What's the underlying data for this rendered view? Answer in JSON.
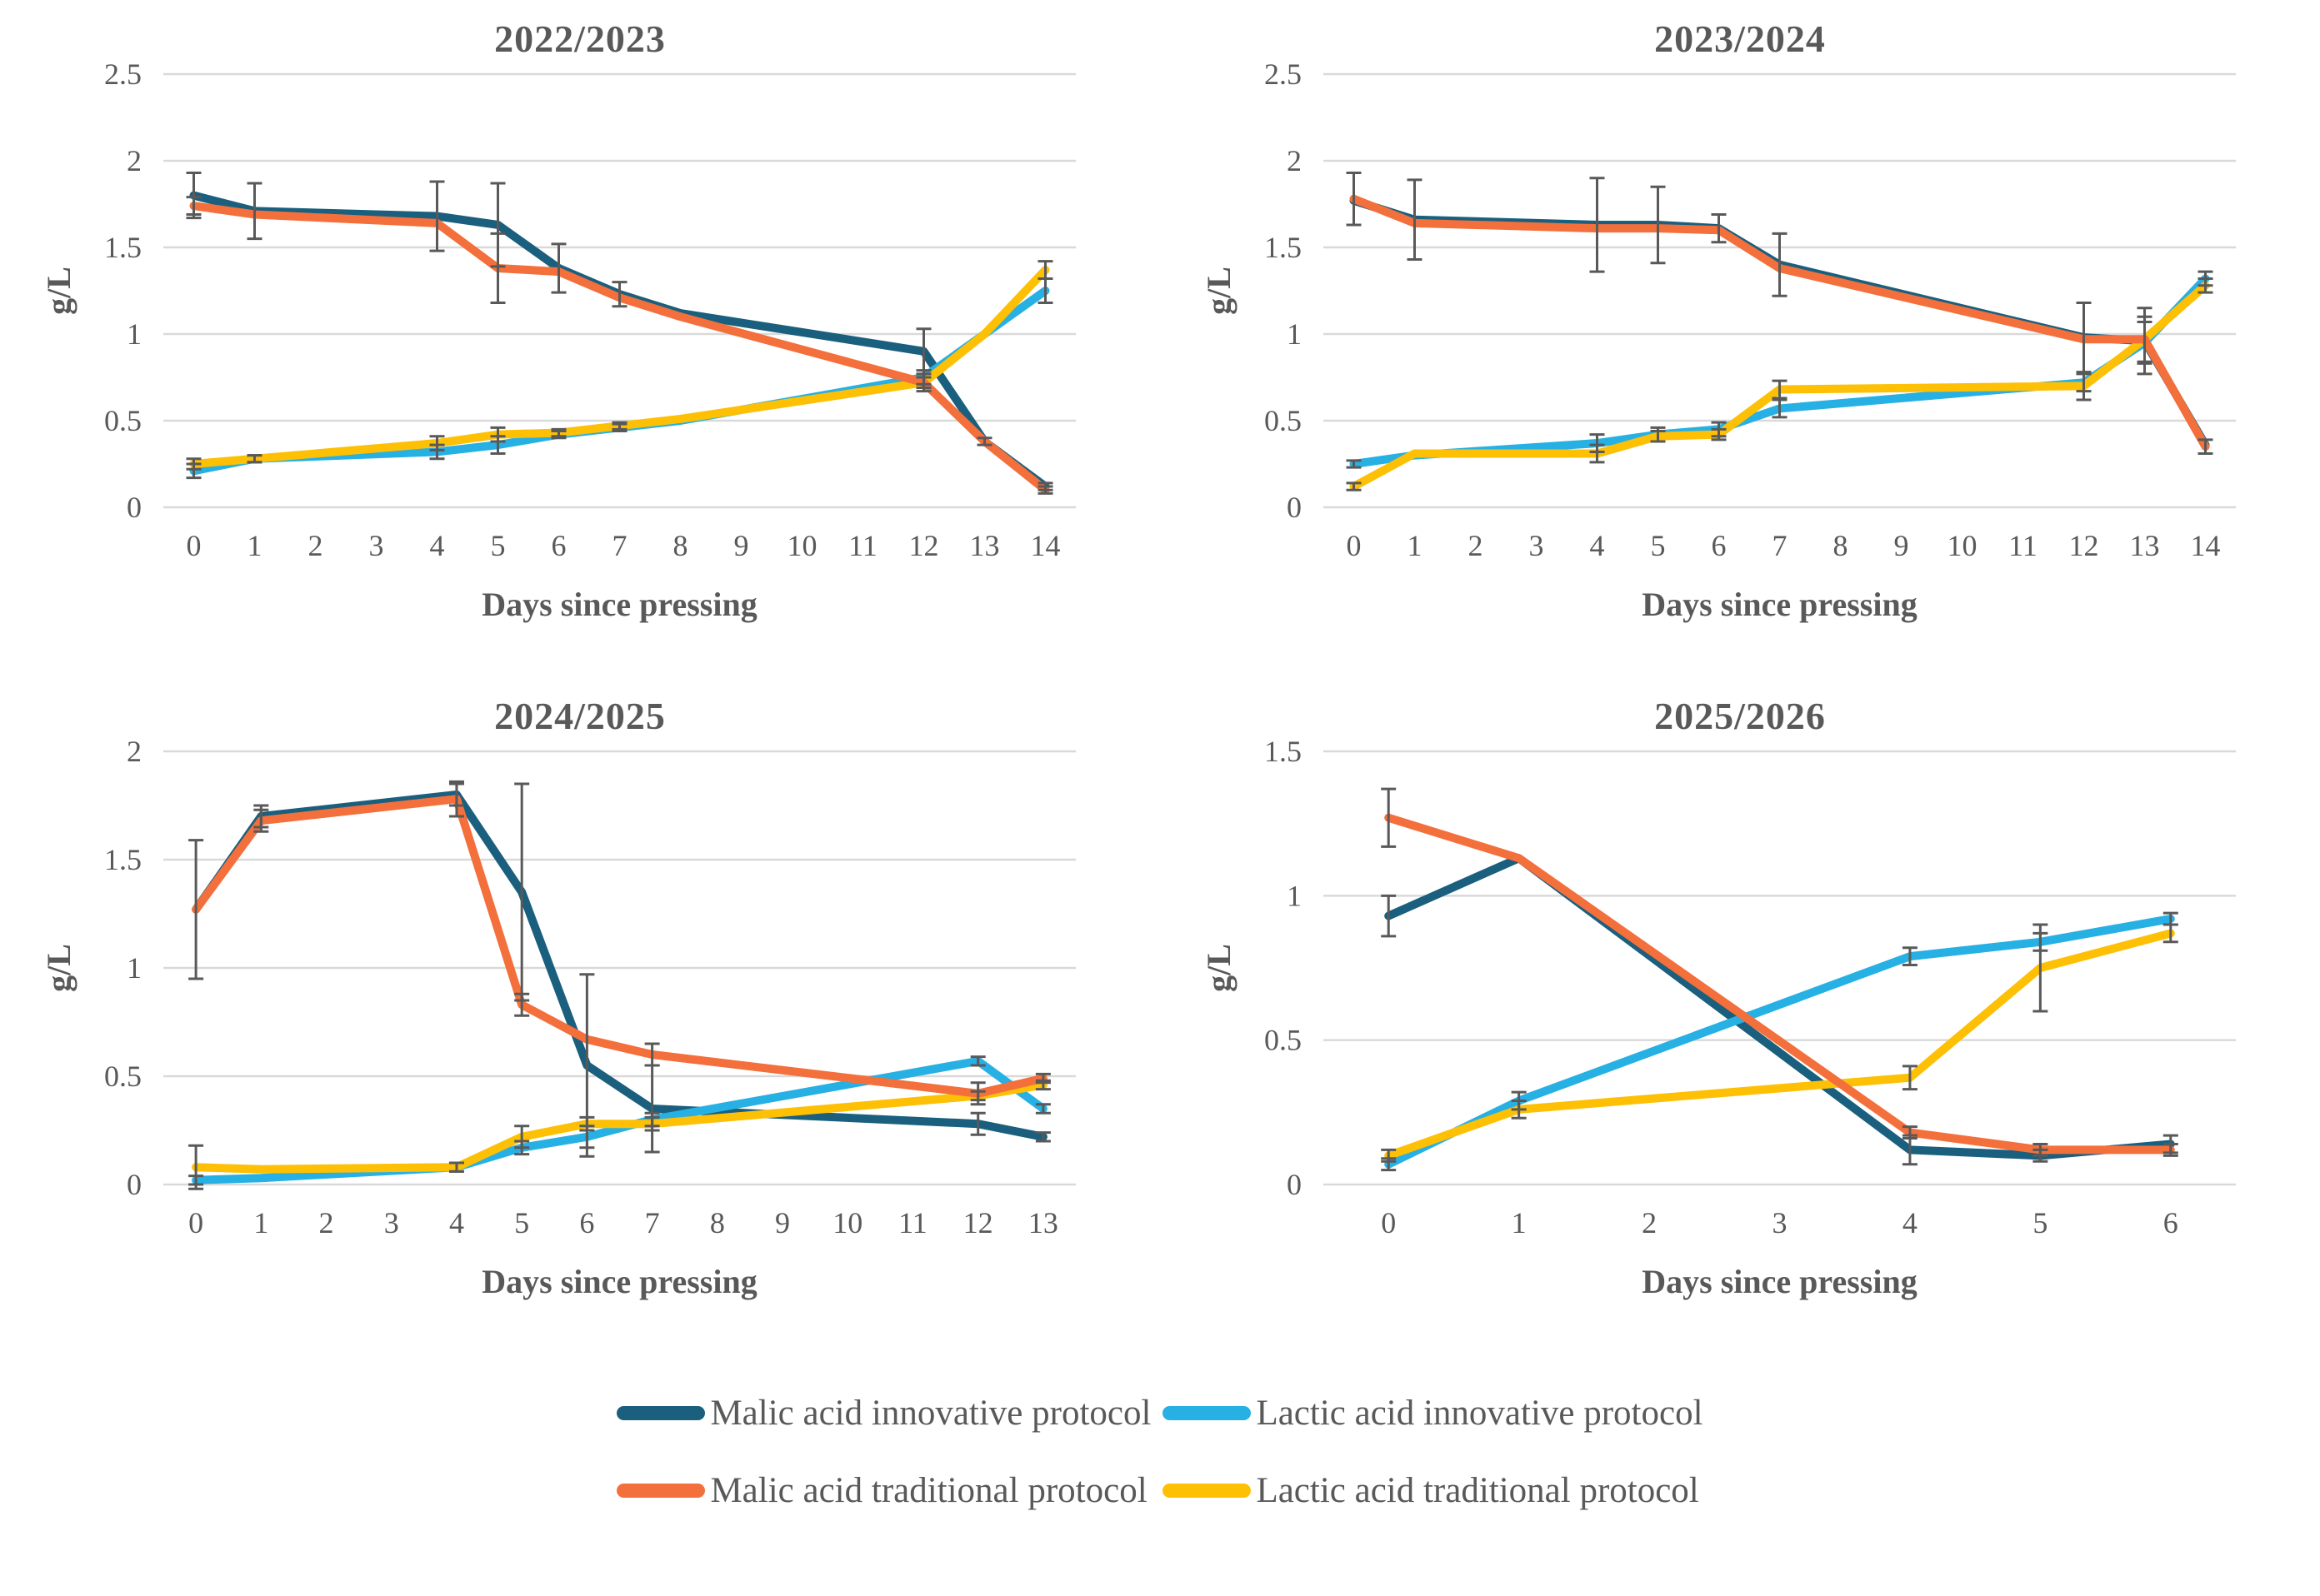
{
  "figure": {
    "text_color": "#595959",
    "grid_color": "#d9d9d9",
    "error_bar_color": "#595959",
    "background": "#ffffff"
  },
  "colors": {
    "malic_innovative": "#1a5f7e",
    "lactic_innovative": "#27b0e3",
    "malic_traditional": "#f36f3b",
    "lactic_traditional": "#fdc005"
  },
  "legend": {
    "items": [
      {
        "label": "Malic acid innovative protocol",
        "color_key": "malic_innovative"
      },
      {
        "label": "Lactic acid innovative protocol",
        "color_key": "lactic_innovative"
      },
      {
        "label": "Malic acid traditional protocol",
        "color_key": "malic_traditional"
      },
      {
        "label": "Lactic acid traditional protocol",
        "color_key": "lactic_traditional"
      }
    ]
  },
  "chart_data": [
    {
      "type": "line",
      "title": "2022/2023",
      "xlabel": "Days since pressing",
      "ylabel": "g/L",
      "xticks": [
        0,
        1,
        2,
        3,
        4,
        5,
        6,
        7,
        8,
        9,
        10,
        11,
        12,
        13,
        14
      ],
      "ylim": [
        0,
        2.5
      ],
      "yticks": [
        0,
        0.5,
        1,
        1.5,
        2,
        2.5
      ],
      "grid": true,
      "series": [
        {
          "name": "Malic acid innovative protocol",
          "color_key": "malic_innovative",
          "x": [
            0,
            1,
            4,
            5,
            6,
            7,
            8,
            12,
            13,
            14
          ],
          "values": [
            1.8,
            1.71,
            1.68,
            1.63,
            1.38,
            1.23,
            1.12,
            0.9,
            0.38,
            0.12
          ],
          "errors": [
            0.13,
            0.16,
            0.2,
            0.24,
            0.14,
            0.07,
            0,
            0.13,
            0.02,
            0.02
          ]
        },
        {
          "name": "Lactic acid innovative protocol",
          "color_key": "lactic_innovative",
          "x": [
            0,
            1,
            4,
            5,
            6,
            7,
            8,
            12,
            13,
            14
          ],
          "values": [
            0.21,
            0.28,
            0.32,
            0.36,
            0.42,
            0.46,
            0.5,
            0.75,
            1.0,
            1.25
          ],
          "errors": [
            0.04,
            0.02,
            0.04,
            0.05,
            0.02,
            0.02,
            0,
            0.04,
            0,
            0.07
          ]
        },
        {
          "name": "Lactic acid traditional protocol",
          "color_key": "lactic_traditional",
          "x": [
            0,
            1,
            4,
            5,
            6,
            7,
            8,
            12,
            13,
            14
          ],
          "values": [
            0.25,
            0.28,
            0.37,
            0.42,
            0.43,
            0.47,
            0.51,
            0.72,
            1.0,
            1.37
          ],
          "errors": [
            0.03,
            0.02,
            0.04,
            0.04,
            0.02,
            0.02,
            0,
            0.03,
            0,
            0.05
          ]
        },
        {
          "name": "Malic acid traditional protocol",
          "color_key": "malic_traditional",
          "x": [
            0,
            1,
            4,
            5,
            6,
            7,
            8,
            12,
            13,
            14
          ],
          "values": [
            1.74,
            1.69,
            1.64,
            1.38,
            1.36,
            1.21,
            1.1,
            0.72,
            0.38,
            0.1
          ],
          "errors": [
            0.05,
            0,
            0,
            0.2,
            0,
            0,
            0,
            0.05,
            0,
            0.02
          ]
        }
      ]
    },
    {
      "type": "line",
      "title": "2023/2024",
      "xlabel": "Days since pressing",
      "ylabel": "g/L",
      "xticks": [
        0,
        1,
        2,
        3,
        4,
        5,
        6,
        7,
        8,
        9,
        10,
        11,
        12,
        13,
        14
      ],
      "ylim": [
        0,
        2.5
      ],
      "yticks": [
        0,
        0.5,
        1,
        1.5,
        2,
        2.5
      ],
      "grid": true,
      "series": [
        {
          "name": "Malic acid innovative protocol",
          "color_key": "malic_innovative",
          "x": [
            0,
            1,
            4,
            5,
            6,
            7,
            12,
            13,
            14
          ],
          "values": [
            1.77,
            1.66,
            1.63,
            1.63,
            1.61,
            1.4,
            0.98,
            0.96,
            0.36
          ],
          "errors": [
            0,
            0.23,
            0.27,
            0.22,
            0.08,
            0.18,
            0.2,
            0.19,
            0
          ]
        },
        {
          "name": "Lactic acid innovative protocol",
          "color_key": "lactic_innovative",
          "x": [
            0,
            1,
            4,
            5,
            6,
            7,
            12,
            13,
            14
          ],
          "values": [
            0.25,
            0.3,
            0.37,
            0.42,
            0.45,
            0.57,
            0.72,
            0.95,
            1.32
          ],
          "errors": [
            0.02,
            0,
            0.05,
            0.04,
            0.04,
            0.05,
            0.05,
            0.12,
            0.04
          ]
        },
        {
          "name": "Lactic acid traditional protocol",
          "color_key": "lactic_traditional",
          "x": [
            0,
            1,
            4,
            5,
            6,
            7,
            12,
            13,
            14
          ],
          "values": [
            0.12,
            0.31,
            0.31,
            0.41,
            0.42,
            0.68,
            0.7,
            0.97,
            1.28
          ],
          "errors": [
            0.02,
            0,
            0.05,
            0.03,
            0.03,
            0.05,
            0.08,
            0.13,
            0.04
          ]
        },
        {
          "name": "Malic acid traditional protocol",
          "color_key": "malic_traditional",
          "x": [
            0,
            1,
            4,
            5,
            6,
            7,
            12,
            13,
            14
          ],
          "values": [
            1.78,
            1.64,
            1.61,
            1.61,
            1.6,
            1.38,
            0.97,
            0.97,
            0.35
          ],
          "errors": [
            0.15,
            0,
            0,
            0,
            0,
            0,
            0,
            0,
            0.04
          ]
        }
      ]
    },
    {
      "type": "line",
      "title": "2024/2025",
      "xlabel": "Days since pressing",
      "ylabel": "g/L",
      "xticks": [
        0,
        1,
        2,
        3,
        4,
        5,
        6,
        7,
        8,
        9,
        10,
        11,
        12,
        13
      ],
      "ylim": [
        0,
        2
      ],
      "yticks": [
        0,
        0.5,
        1,
        1.5,
        2
      ],
      "grid": true,
      "series": [
        {
          "name": "Malic acid innovative protocol",
          "color_key": "malic_innovative",
          "x": [
            0,
            1,
            4,
            5,
            6,
            7,
            12,
            13
          ],
          "values": [
            1.27,
            1.7,
            1.8,
            1.35,
            0.55,
            0.35,
            0.28,
            0.22
          ],
          "errors": [
            0.32,
            0.05,
            0.05,
            0.5,
            0.42,
            0.2,
            0.05,
            0.02
          ]
        },
        {
          "name": "Lactic acid innovative protocol",
          "color_key": "lactic_innovative",
          "x": [
            0,
            1,
            4,
            5,
            6,
            7,
            12,
            13
          ],
          "values": [
            0.02,
            0.03,
            0.08,
            0.17,
            0.22,
            0.3,
            0.57,
            0.35
          ],
          "errors": [
            0.02,
            0,
            0.02,
            0.03,
            0.05,
            0.03,
            0.02,
            0.02
          ]
        },
        {
          "name": "Lactic acid traditional protocol",
          "color_key": "lactic_traditional",
          "x": [
            0,
            1,
            4,
            5,
            6,
            7,
            12,
            13
          ],
          "values": [
            0.08,
            0.07,
            0.08,
            0.22,
            0.28,
            0.28,
            0.41,
            0.46
          ],
          "errors": [
            0.1,
            0,
            0.02,
            0.05,
            0.03,
            0.03,
            0.02,
            0.02
          ]
        },
        {
          "name": "Malic acid traditional protocol",
          "color_key": "malic_traditional",
          "x": [
            0,
            1,
            4,
            5,
            6,
            7,
            12,
            13
          ],
          "values": [
            1.27,
            1.68,
            1.78,
            0.83,
            0.67,
            0.6,
            0.42,
            0.49
          ],
          "errors": [
            0,
            0.05,
            0.08,
            0.05,
            0,
            0.05,
            0.05,
            0.02
          ]
        }
      ]
    },
    {
      "type": "line",
      "title": "2025/2026",
      "xlabel": "Days since pressing",
      "ylabel": "g/L",
      "xticks": [
        0,
        1,
        2,
        3,
        4,
        5,
        6
      ],
      "ylim": [
        0,
        1.5
      ],
      "yticks": [
        0,
        0.5,
        1,
        1.5
      ],
      "grid": true,
      "series": [
        {
          "name": "Malic acid innovative protocol",
          "color_key": "malic_innovative",
          "x": [
            0,
            1,
            4,
            5,
            6
          ],
          "values": [
            0.93,
            1.13,
            0.12,
            0.1,
            0.14
          ],
          "errors": [
            0.07,
            0,
            0.05,
            0.02,
            0.03
          ]
        },
        {
          "name": "Lactic acid innovative protocol",
          "color_key": "lactic_innovative",
          "x": [
            0,
            1,
            4,
            5,
            6
          ],
          "values": [
            0.07,
            0.29,
            0.79,
            0.84,
            0.92
          ],
          "errors": [
            0.02,
            0.03,
            0.03,
            0.03,
            0.02
          ]
        },
        {
          "name": "Lactic acid traditional protocol",
          "color_key": "lactic_traditional",
          "x": [
            0,
            1,
            4,
            5,
            6
          ],
          "values": [
            0.1,
            0.26,
            0.37,
            0.75,
            0.87
          ],
          "errors": [
            0.02,
            0.03,
            0.04,
            0.15,
            0.03
          ]
        },
        {
          "name": "Malic acid traditional protocol",
          "color_key": "malic_traditional",
          "x": [
            0,
            1,
            4,
            5,
            6
          ],
          "values": [
            1.27,
            1.13,
            0.18,
            0.12,
            0.12
          ],
          "errors": [
            0.1,
            0,
            0.02,
            0.02,
            0.02
          ]
        }
      ]
    }
  ]
}
